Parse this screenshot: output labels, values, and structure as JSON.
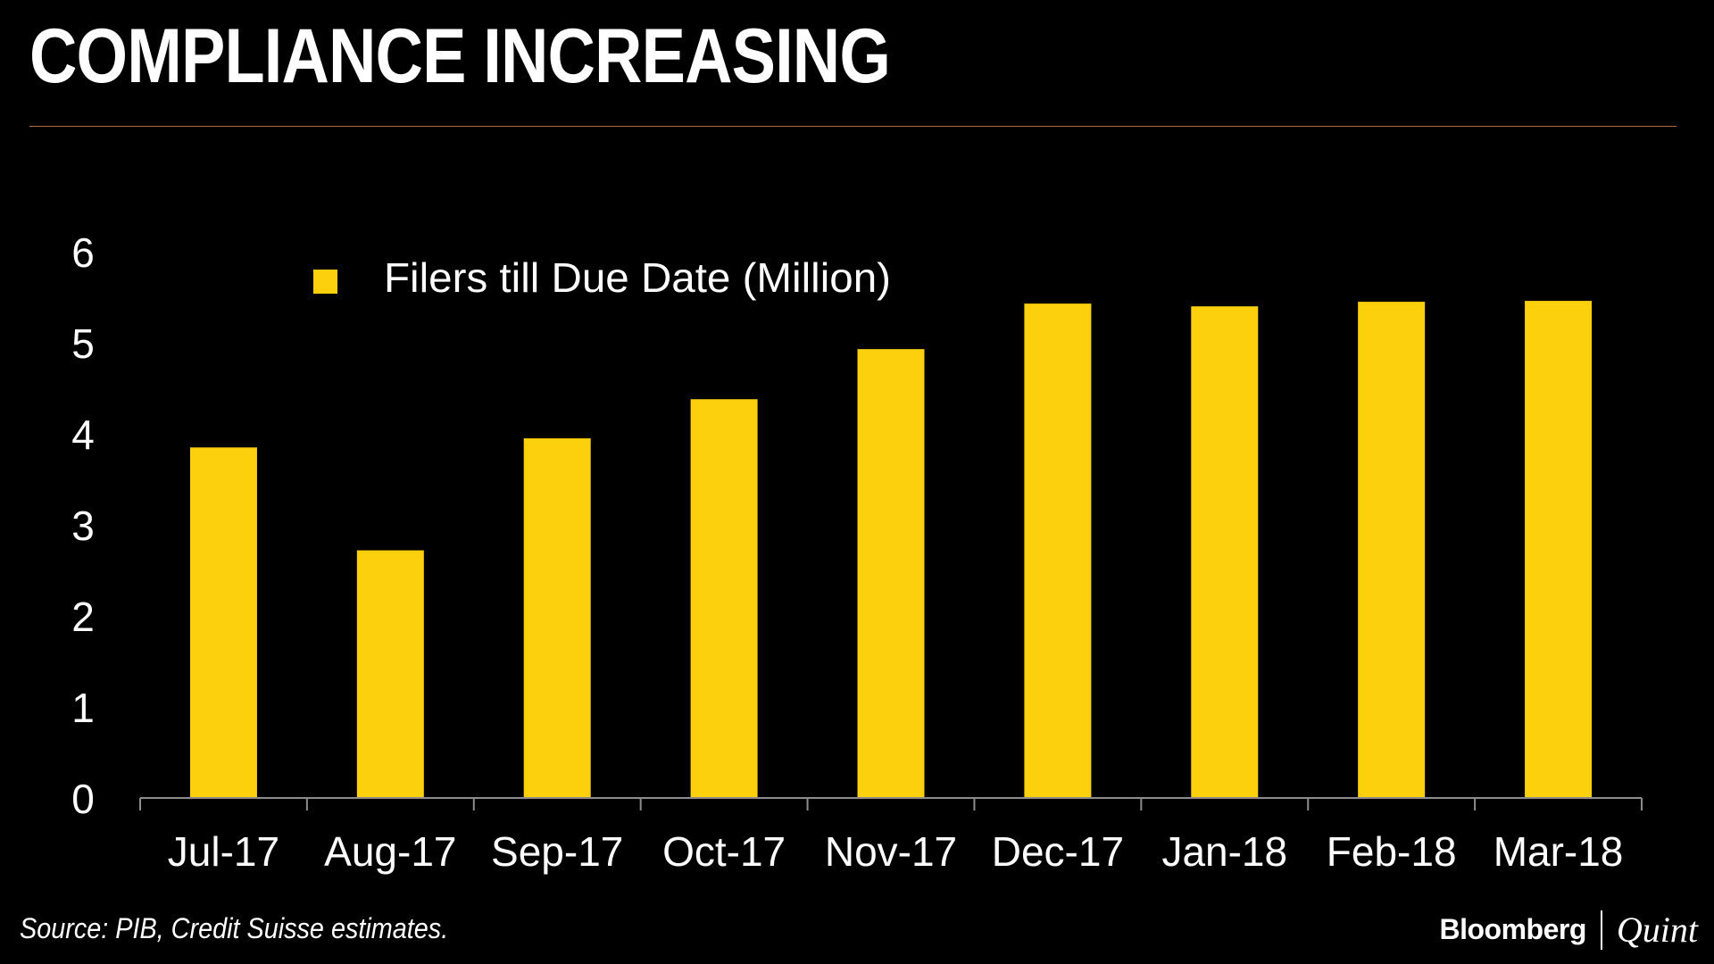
{
  "title": "COMPLIANCE INCREASING",
  "source": "Source: PIB, Credit Suisse estimates.",
  "brand": {
    "primary": "Bloomberg",
    "secondary": "Quint"
  },
  "colors": {
    "background": "#000000",
    "bar": "#fcd00c",
    "text": "#ffffff",
    "axis": "#8c8c8c",
    "title_rule": "#b56a3c"
  },
  "chart_data": {
    "type": "bar",
    "categories": [
      "Jul-17",
      "Aug-17",
      "Sep-17",
      "Oct-17",
      "Nov-17",
      "Dec-17",
      "Jan-18",
      "Feb-18",
      "Mar-18"
    ],
    "series": [
      {
        "name": "Filers till Due Date (Million)",
        "values": [
          3.85,
          2.72,
          3.95,
          4.38,
          4.93,
          5.43,
          5.4,
          5.45,
          5.46
        ]
      }
    ],
    "y_ticks": [
      "0",
      "1",
      "2",
      "3",
      "4",
      "5",
      "6"
    ],
    "ylim": [
      0,
      6
    ],
    "grid": false,
    "legend_position": "top-left"
  }
}
